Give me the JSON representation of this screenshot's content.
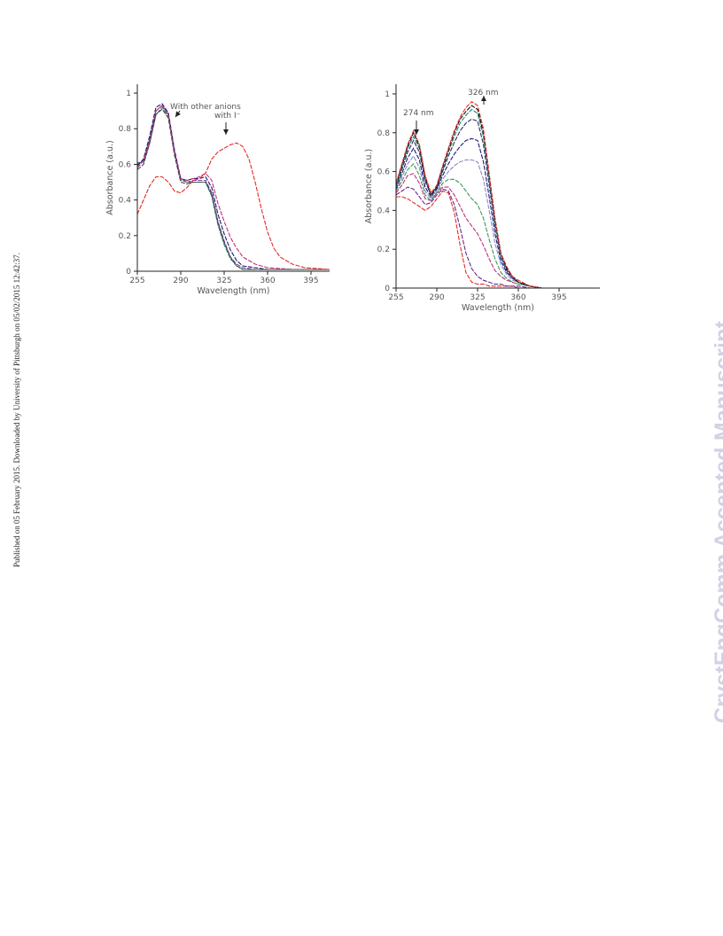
{
  "side_note": "Published on 05 February 2015. Downloaded by University of Pittsburgh on 05/02/2015 12:42:37.",
  "watermark": "CrystEngComm Accepted Manuscript",
  "chart_data": [
    {
      "type": "line",
      "title": "",
      "xlabel": "Wavelength (nm)",
      "ylabel": "Absorbance (a.u.)",
      "xlim": [
        255,
        410
      ],
      "ylim": [
        0,
        1.05
      ],
      "xticks": [
        255,
        290,
        325,
        360,
        395
      ],
      "xtick_labels": [
        "255",
        "290",
        "325",
        "360",
        "395"
      ],
      "yticks": [
        0,
        0.2,
        0.4,
        0.6,
        0.8,
        1
      ],
      "ytick_labels": [
        "0",
        "0.2",
        "0.4",
        "0.6",
        "0.8",
        "1"
      ],
      "annotations": [
        {
          "text": "With other anions",
          "x": 290,
          "y": 0.92
        },
        {
          "text": "with I⁻",
          "x": 333,
          "y": 0.72
        }
      ],
      "series": [
        {
          "color": "#1d8a6a",
          "x": [
            255,
            260,
            265,
            270,
            275,
            280,
            285,
            290,
            295,
            300,
            305,
            310,
            315,
            320,
            325,
            330,
            335,
            340,
            350,
            360,
            380,
            410
          ],
          "y": [
            0.61,
            0.61,
            0.72,
            0.88,
            0.92,
            0.87,
            0.66,
            0.51,
            0.5,
            0.5,
            0.5,
            0.5,
            0.42,
            0.26,
            0.15,
            0.07,
            0.03,
            0.01,
            0.01,
            0.01,
            0.01,
            0.01
          ]
        },
        {
          "color": "#7a3f9a",
          "x": [
            255,
            260,
            265,
            270,
            275,
            280,
            285,
            290,
            295,
            300,
            305,
            310,
            315,
            320,
            325,
            330,
            335,
            340,
            350,
            360,
            380,
            410
          ],
          "y": [
            0.6,
            0.62,
            0.74,
            0.9,
            0.93,
            0.88,
            0.67,
            0.52,
            0.5,
            0.51,
            0.51,
            0.51,
            0.44,
            0.28,
            0.17,
            0.08,
            0.04,
            0.02,
            0.01,
            0.01,
            0.01,
            0.01
          ]
        },
        {
          "color": "#1a1a7a",
          "x": [
            255,
            260,
            265,
            270,
            275,
            280,
            285,
            290,
            295,
            300,
            305,
            310,
            315,
            320,
            325,
            330,
            335,
            340,
            350,
            360,
            380,
            410
          ],
          "y": [
            0.59,
            0.63,
            0.76,
            0.92,
            0.94,
            0.89,
            0.68,
            0.52,
            0.51,
            0.52,
            0.52,
            0.53,
            0.47,
            0.32,
            0.21,
            0.12,
            0.06,
            0.03,
            0.02,
            0.01,
            0.01,
            0.01
          ]
        },
        {
          "color": "#c0307a",
          "x": [
            255,
            260,
            265,
            270,
            275,
            280,
            285,
            290,
            295,
            300,
            305,
            310,
            315,
            320,
            325,
            330,
            335,
            340,
            350,
            360,
            380,
            410
          ],
          "y": [
            0.58,
            0.62,
            0.74,
            0.9,
            0.93,
            0.88,
            0.67,
            0.52,
            0.51,
            0.52,
            0.53,
            0.55,
            0.51,
            0.38,
            0.28,
            0.19,
            0.13,
            0.08,
            0.04,
            0.02,
            0.01,
            0.01
          ]
        },
        {
          "color": "#444444",
          "x": [
            255,
            260,
            265,
            270,
            275,
            280,
            285,
            290,
            295,
            300,
            305,
            310,
            315,
            320,
            325,
            330,
            335,
            340,
            350,
            360,
            380,
            410
          ],
          "y": [
            0.57,
            0.6,
            0.72,
            0.88,
            0.91,
            0.86,
            0.65,
            0.5,
            0.49,
            0.5,
            0.5,
            0.5,
            0.43,
            0.27,
            0.16,
            0.08,
            0.03,
            0.01,
            0.01,
            0.01,
            0.01,
            0.01
          ]
        },
        {
          "color": "#e32b2b",
          "x": [
            255,
            260,
            265,
            270,
            275,
            280,
            285,
            290,
            295,
            300,
            305,
            310,
            315,
            320,
            325,
            330,
            335,
            340,
            345,
            350,
            355,
            360,
            365,
            370,
            380,
            390,
            410
          ],
          "y": [
            0.32,
            0.4,
            0.48,
            0.53,
            0.53,
            0.5,
            0.45,
            0.44,
            0.47,
            0.51,
            0.52,
            0.55,
            0.63,
            0.67,
            0.69,
            0.71,
            0.72,
            0.7,
            0.63,
            0.5,
            0.35,
            0.22,
            0.13,
            0.08,
            0.04,
            0.02,
            0.01
          ]
        }
      ]
    },
    {
      "type": "line",
      "title": "",
      "xlabel": "Wavelength (nm)",
      "ylabel": "Absorbance (a.u.)",
      "xlim": [
        255,
        430
      ],
      "ylim": [
        0,
        1.05
      ],
      "xticks": [
        255,
        290,
        325,
        360,
        395
      ],
      "xtick_labels": [
        "255",
        "290",
        "325",
        "360",
        "395"
      ],
      "yticks": [
        0,
        0.2,
        0.4,
        0.6,
        0.8,
        1
      ],
      "ytick_labels": [
        "0",
        "0.2",
        "0.4",
        "0.6",
        "0.8",
        "1"
      ],
      "annotations": [
        {
          "text": "274 nm",
          "x": 274,
          "y": 0.82
        },
        {
          "text": "326 nm",
          "x": 326,
          "y": 0.93
        }
      ],
      "series": [
        {
          "color": "#e32b2b",
          "x": [
            255,
            260,
            265,
            270,
            275,
            280,
            285,
            290,
            295,
            300,
            305,
            310,
            315,
            320,
            325,
            330,
            335,
            340,
            345,
            350,
            355,
            360,
            370,
            380,
            400,
            430
          ],
          "y": [
            0.47,
            0.47,
            0.46,
            0.44,
            0.42,
            0.4,
            0.42,
            0.46,
            0.5,
            0.49,
            0.39,
            0.22,
            0.08,
            0.03,
            0.02,
            0.02,
            0.01,
            0.01,
            0.01,
            0.01,
            0.01,
            0.0,
            0.0,
            0.0,
            0.0,
            0.0
          ]
        },
        {
          "color": "#6a2a8a",
          "x": [
            255,
            260,
            265,
            270,
            275,
            280,
            285,
            290,
            295,
            300,
            305,
            310,
            315,
            320,
            325,
            330,
            335,
            340,
            345,
            350,
            355,
            360,
            370,
            380,
            400,
            430
          ],
          "y": [
            0.48,
            0.5,
            0.52,
            0.51,
            0.47,
            0.43,
            0.44,
            0.48,
            0.51,
            0.5,
            0.43,
            0.31,
            0.18,
            0.1,
            0.06,
            0.04,
            0.03,
            0.02,
            0.02,
            0.01,
            0.01,
            0.01,
            0.0,
            0.0,
            0.0,
            0.0
          ]
        },
        {
          "color": "#c0307a",
          "x": [
            255,
            260,
            265,
            270,
            275,
            280,
            285,
            290,
            295,
            300,
            305,
            310,
            315,
            320,
            325,
            330,
            335,
            340,
            345,
            350,
            355,
            360,
            370,
            380,
            400,
            430
          ],
          "y": [
            0.49,
            0.53,
            0.58,
            0.59,
            0.54,
            0.46,
            0.45,
            0.49,
            0.52,
            0.52,
            0.48,
            0.42,
            0.36,
            0.32,
            0.28,
            0.22,
            0.15,
            0.09,
            0.06,
            0.04,
            0.03,
            0.02,
            0.01,
            0.0,
            0.0,
            0.0
          ]
        },
        {
          "color": "#3a9a5a",
          "x": [
            255,
            260,
            265,
            270,
            275,
            280,
            285,
            290,
            295,
            300,
            305,
            310,
            315,
            320,
            325,
            330,
            335,
            340,
            345,
            350,
            355,
            360,
            370,
            380,
            400,
            430
          ],
          "y": [
            0.5,
            0.55,
            0.61,
            0.64,
            0.58,
            0.48,
            0.45,
            0.49,
            0.54,
            0.56,
            0.56,
            0.54,
            0.5,
            0.46,
            0.43,
            0.36,
            0.25,
            0.15,
            0.08,
            0.05,
            0.03,
            0.02,
            0.01,
            0.0,
            0.0,
            0.0
          ]
        },
        {
          "color": "#8a8ac8",
          "x": [
            255,
            260,
            265,
            270,
            275,
            280,
            285,
            290,
            295,
            300,
            305,
            310,
            315,
            320,
            325,
            330,
            335,
            340,
            345,
            350,
            355,
            360,
            370,
            380,
            400,
            430
          ],
          "y": [
            0.5,
            0.57,
            0.64,
            0.68,
            0.62,
            0.5,
            0.46,
            0.5,
            0.56,
            0.6,
            0.63,
            0.65,
            0.66,
            0.66,
            0.65,
            0.56,
            0.4,
            0.23,
            0.12,
            0.07,
            0.04,
            0.03,
            0.01,
            0.0,
            0.0,
            0.0
          ]
        },
        {
          "color": "#1a1a7a",
          "x": [
            255,
            260,
            265,
            270,
            275,
            280,
            285,
            290,
            295,
            300,
            305,
            310,
            315,
            320,
            325,
            330,
            335,
            340,
            345,
            350,
            355,
            360,
            370,
            380,
            400,
            430
          ],
          "y": [
            0.51,
            0.59,
            0.67,
            0.72,
            0.66,
            0.52,
            0.47,
            0.51,
            0.58,
            0.64,
            0.69,
            0.73,
            0.76,
            0.77,
            0.76,
            0.65,
            0.47,
            0.28,
            0.14,
            0.08,
            0.05,
            0.03,
            0.01,
            0.0,
            0.0,
            0.0
          ]
        },
        {
          "color": "#2a2a6a",
          "x": [
            255,
            260,
            265,
            270,
            275,
            280,
            285,
            290,
            295,
            300,
            305,
            310,
            315,
            320,
            325,
            330,
            335,
            340,
            345,
            350,
            355,
            360,
            370,
            380,
            400,
            430
          ],
          "y": [
            0.52,
            0.61,
            0.7,
            0.76,
            0.7,
            0.55,
            0.48,
            0.52,
            0.6,
            0.68,
            0.75,
            0.81,
            0.85,
            0.87,
            0.86,
            0.74,
            0.53,
            0.32,
            0.16,
            0.09,
            0.05,
            0.03,
            0.01,
            0.0,
            0.0,
            0.0
          ]
        },
        {
          "color": "#1d8a6a",
          "x": [
            255,
            260,
            265,
            270,
            275,
            280,
            285,
            290,
            295,
            300,
            305,
            310,
            315,
            320,
            325,
            330,
            335,
            340,
            345,
            350,
            355,
            360,
            370,
            380,
            400,
            430
          ],
          "y": [
            0.52,
            0.62,
            0.72,
            0.78,
            0.72,
            0.56,
            0.48,
            0.52,
            0.61,
            0.7,
            0.78,
            0.85,
            0.89,
            0.92,
            0.9,
            0.78,
            0.56,
            0.34,
            0.17,
            0.1,
            0.06,
            0.03,
            0.01,
            0.0,
            0.0,
            0.0
          ]
        },
        {
          "color": "#111111",
          "x": [
            255,
            260,
            265,
            270,
            275,
            280,
            285,
            290,
            295,
            300,
            305,
            310,
            315,
            320,
            325,
            330,
            335,
            340,
            345,
            350,
            355,
            360,
            370,
            380,
            400,
            430
          ],
          "y": [
            0.53,
            0.63,
            0.73,
            0.8,
            0.73,
            0.57,
            0.48,
            0.52,
            0.62,
            0.71,
            0.8,
            0.87,
            0.91,
            0.94,
            0.92,
            0.8,
            0.58,
            0.35,
            0.18,
            0.1,
            0.06,
            0.03,
            0.01,
            0.0,
            0.0,
            0.0
          ]
        },
        {
          "color": "#e32b2b",
          "x": [
            255,
            260,
            265,
            270,
            275,
            280,
            285,
            290,
            295,
            300,
            305,
            310,
            315,
            320,
            325,
            330,
            335,
            340,
            345,
            350,
            355,
            360,
            370,
            380,
            400,
            430
          ],
          "y": [
            0.54,
            0.64,
            0.74,
            0.81,
            0.74,
            0.58,
            0.49,
            0.53,
            0.63,
            0.72,
            0.81,
            0.88,
            0.93,
            0.96,
            0.94,
            0.82,
            0.59,
            0.36,
            0.18,
            0.11,
            0.06,
            0.04,
            0.01,
            0.0,
            0.0,
            0.0
          ]
        }
      ]
    }
  ]
}
